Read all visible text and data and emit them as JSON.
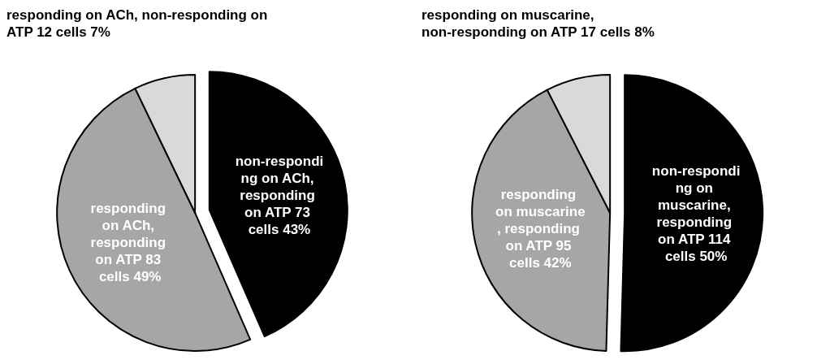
{
  "chart_data": [
    {
      "type": "pie",
      "categories": [
        "non-responding on ACh, responding on ATP",
        "responding on ACh, responding on ATP",
        "responding on ACh, non-responding on ATP"
      ],
      "values": [
        73,
        83,
        12
      ],
      "colors": [
        "#000000",
        "#a6a6a6",
        "#d9d9d9"
      ],
      "value_labels": [
        "73 cells 43%",
        "83 cells 49%",
        "12 cells 7%"
      ],
      "legend": false
    },
    {
      "type": "pie",
      "categories": [
        "non-responding on muscarine, responding on ATP",
        "responding on muscarine, responding on ATP",
        "responding on muscarine, non-responding on ATP"
      ],
      "values": [
        114,
        95,
        17
      ],
      "colors": [
        "#000000",
        "#a6a6a6",
        "#d9d9d9"
      ],
      "value_labels": [
        "114 cells 50%",
        "95 cells 42%",
        "17 cells 8%"
      ],
      "legend": false
    }
  ]
}
